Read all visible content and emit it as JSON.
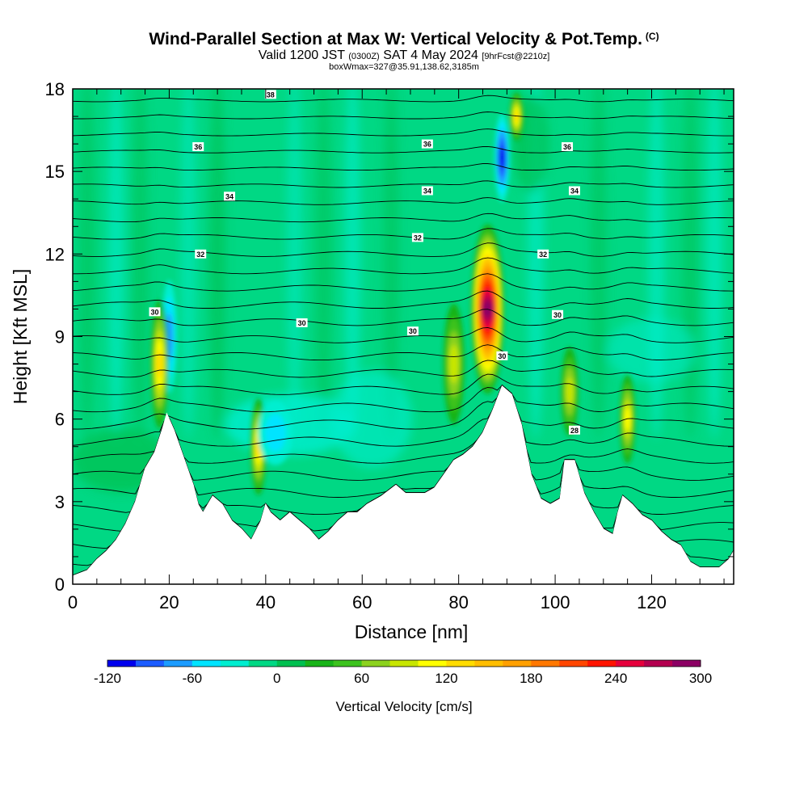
{
  "header": {
    "title": "Wind-Parallel Section at Max W: Vertical Velocity & Pot.Temp.",
    "copyright": "(C)",
    "valid_prefix": "Valid 1200 JST",
    "valid_utc": "(0300Z)",
    "valid_date": "SAT 4 May 2024",
    "forecast": "[9hrFcst@2210z]",
    "box_info": "boxWmax=327@35.91,138.62,3185m"
  },
  "chart_data": {
    "type": "heatmap",
    "title": "Wind-Parallel Section at Max W: Vertical Velocity & Pot.Temp.",
    "xlabel": "Distance [nm]",
    "ylabel": "Height [Kft MSL]",
    "xlim": [
      0,
      137
    ],
    "ylim": [
      0,
      18
    ],
    "x_ticks": [
      0,
      20,
      40,
      60,
      80,
      100,
      120
    ],
    "y_ticks": [
      0,
      3,
      6,
      9,
      12,
      15,
      18
    ],
    "grid": false,
    "colorbar": {
      "title": "Vertical Velocity [cm/s]",
      "min": -120,
      "max": 300,
      "step": 20,
      "tick_labels": [
        "-120",
        "-60",
        "0",
        "60",
        "120",
        "180",
        "240",
        "300"
      ],
      "colors": [
        "#0000ee",
        "#1c5cff",
        "#1c9cff",
        "#00e4ff",
        "#00eed0",
        "#00d884",
        "#00c050",
        "#19b419",
        "#3cc31e",
        "#8cd21e",
        "#c8e600",
        "#ffff00",
        "#ffdc00",
        "#ffbe00",
        "#ffa000",
        "#ff7800",
        "#ff4600",
        "#ff1400",
        "#e6003c",
        "#b40050",
        "#8c0064"
      ]
    },
    "terrain_kft": [
      [
        0,
        0.3
      ],
      [
        3,
        0.5
      ],
      [
        5,
        0.9
      ],
      [
        7,
        1.2
      ],
      [
        9,
        1.6
      ],
      [
        11,
        2.2
      ],
      [
        13,
        3.0
      ],
      [
        15,
        4.2
      ],
      [
        17,
        4.8
      ],
      [
        18.5,
        5.6
      ],
      [
        19.5,
        6.2
      ],
      [
        21,
        5.6
      ],
      [
        23,
        4.6
      ],
      [
        25,
        3.6
      ],
      [
        26,
        2.9
      ],
      [
        27,
        2.6
      ],
      [
        28,
        2.9
      ],
      [
        29,
        3.2
      ],
      [
        31,
        2.9
      ],
      [
        33,
        2.3
      ],
      [
        35,
        2.0
      ],
      [
        37,
        1.6
      ],
      [
        39,
        2.3
      ],
      [
        40,
        2.9
      ],
      [
        41,
        2.6
      ],
      [
        43,
        2.3
      ],
      [
        45,
        2.6
      ],
      [
        47,
        2.3
      ],
      [
        49,
        2.0
      ],
      [
        51,
        1.6
      ],
      [
        53,
        1.9
      ],
      [
        55,
        2.3
      ],
      [
        57,
        2.6
      ],
      [
        59,
        2.6
      ],
      [
        61,
        2.9
      ],
      [
        64,
        3.2
      ],
      [
        67,
        3.6
      ],
      [
        69,
        3.3
      ],
      [
        71,
        3.3
      ],
      [
        73,
        3.3
      ],
      [
        75,
        3.5
      ],
      [
        77,
        4.0
      ],
      [
        79,
        4.5
      ],
      [
        81,
        4.7
      ],
      [
        83,
        5.0
      ],
      [
        85,
        5.5
      ],
      [
        87,
        6.3
      ],
      [
        89,
        7.2
      ],
      [
        91,
        6.9
      ],
      [
        93,
        5.8
      ],
      [
        95,
        4.0
      ],
      [
        97,
        3.1
      ],
      [
        99,
        2.9
      ],
      [
        101,
        3.1
      ],
      [
        102,
        4.5
      ],
      [
        104,
        4.5
      ],
      [
        106,
        3.3
      ],
      [
        108,
        2.6
      ],
      [
        110,
        2.0
      ],
      [
        112,
        1.8
      ],
      [
        113,
        2.6
      ],
      [
        114,
        3.2
      ],
      [
        116,
        2.9
      ],
      [
        118,
        2.5
      ],
      [
        120,
        2.3
      ],
      [
        122,
        1.9
      ],
      [
        124,
        1.6
      ],
      [
        126,
        1.4
      ],
      [
        128,
        0.8
      ],
      [
        130,
        0.6
      ],
      [
        132,
        0.6
      ],
      [
        134,
        0.6
      ],
      [
        136,
        0.9
      ],
      [
        137,
        1.2
      ]
    ],
    "w_features_cm_s": [
      {
        "x": 20,
        "y": 9,
        "w": -70
      },
      {
        "x": 18,
        "y": 8,
        "w": 130
      },
      {
        "x": 38.5,
        "y": 5,
        "w": 140
      },
      {
        "x": 42,
        "y": 5.5,
        "w": -50
      },
      {
        "x": 79,
        "y": 8,
        "w": 90
      },
      {
        "x": 86,
        "y": 10,
        "w": 300
      },
      {
        "x": 89,
        "y": 15.5,
        "w": -110
      },
      {
        "x": 92,
        "y": 17,
        "w": 130
      },
      {
        "x": 103,
        "y": 7,
        "w": 100
      },
      {
        "x": 115,
        "y": 6,
        "w": 110
      }
    ],
    "theta_contours": [
      {
        "label": "38",
        "x": 41,
        "y": 17.8
      },
      {
        "label": "36",
        "x": 26,
        "y": 15.9
      },
      {
        "label": "36",
        "x": 73.5,
        "y": 16
      },
      {
        "label": "36",
        "x": 102.5,
        "y": 15.9
      },
      {
        "label": "34",
        "x": 32.5,
        "y": 14.1
      },
      {
        "label": "34",
        "x": 73.5,
        "y": 14.3
      },
      {
        "label": "34",
        "x": 104,
        "y": 14.3
      },
      {
        "label": "32",
        "x": 26.5,
        "y": 12
      },
      {
        "label": "32",
        "x": 71.5,
        "y": 12.6
      },
      {
        "label": "32",
        "x": 97.5,
        "y": 12
      },
      {
        "label": "30",
        "x": 17,
        "y": 9.9
      },
      {
        "label": "30",
        "x": 47.5,
        "y": 9.5
      },
      {
        "label": "30",
        "x": 70.5,
        "y": 9.2
      },
      {
        "label": "30",
        "x": 100.5,
        "y": 9.8
      },
      {
        "label": "30",
        "x": 89,
        "y": 8.3
      },
      {
        "label": "28",
        "x": 104,
        "y": 5.6
      }
    ]
  }
}
